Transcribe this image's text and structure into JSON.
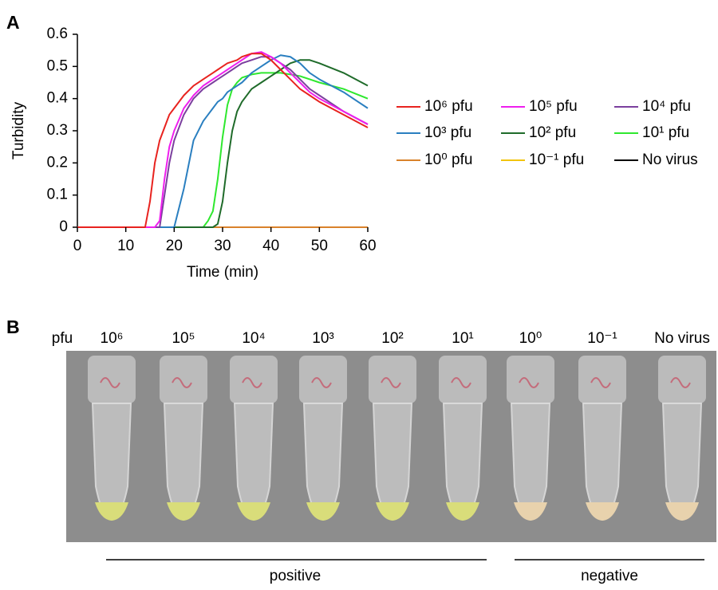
{
  "panel_labels": [
    "A",
    "B"
  ],
  "chart_data": {
    "type": "line",
    "y_label": "Turbidity",
    "x_label": "Time (min)",
    "x": [
      0,
      12,
      14,
      15,
      16,
      17,
      18,
      19,
      20,
      22,
      24,
      26,
      27,
      28,
      29,
      30,
      31,
      32,
      33,
      34,
      36,
      38,
      40,
      42,
      44,
      46,
      48,
      50,
      55,
      60
    ],
    "series": [
      {
        "name": "10⁶ pfu",
        "color": "#e8231f",
        "values": [
          0,
          0,
          0,
          0.08,
          0.2,
          0.27,
          0.31,
          0.35,
          0.37,
          0.41,
          0.44,
          0.46,
          0.47,
          0.48,
          0.49,
          0.5,
          0.51,
          0.515,
          0.52,
          0.53,
          0.54,
          0.54,
          0.52,
          0.49,
          0.46,
          0.43,
          0.41,
          0.39,
          0.35,
          0.31
        ]
      },
      {
        "name": "10⁵ pfu",
        "color": "#ee1eee",
        "values": [
          0,
          0,
          0,
          0,
          0,
          0.02,
          0.15,
          0.25,
          0.3,
          0.37,
          0.41,
          0.44,
          0.45,
          0.46,
          0.47,
          0.48,
          0.49,
          0.5,
          0.51,
          0.52,
          0.54,
          0.545,
          0.53,
          0.51,
          0.48,
          0.45,
          0.42,
          0.4,
          0.36,
          0.32
        ]
      },
      {
        "name": "10⁴ pfu",
        "color": "#7b3f9e",
        "values": [
          0,
          0,
          0,
          0,
          0,
          0,
          0.1,
          0.2,
          0.27,
          0.35,
          0.4,
          0.43,
          0.44,
          0.45,
          0.46,
          0.47,
          0.48,
          0.49,
          0.5,
          0.51,
          0.52,
          0.53,
          0.53,
          0.51,
          0.49,
          0.46,
          0.43,
          0.41,
          0.36,
          0.32
        ]
      },
      {
        "name": "10³ pfu",
        "color": "#2a7fc0",
        "values": [
          0,
          0,
          0,
          0,
          0,
          0,
          0,
          0,
          0,
          0.12,
          0.27,
          0.33,
          0.35,
          0.37,
          0.39,
          0.4,
          0.42,
          0.43,
          0.44,
          0.45,
          0.48,
          0.5,
          0.52,
          0.535,
          0.53,
          0.51,
          0.48,
          0.46,
          0.42,
          0.37
        ]
      },
      {
        "name": "10² pfu",
        "color": "#1f6b2a",
        "values": [
          0,
          0,
          0,
          0,
          0,
          0,
          0,
          0,
          0,
          0,
          0,
          0,
          0,
          0,
          0.01,
          0.08,
          0.2,
          0.3,
          0.36,
          0.39,
          0.43,
          0.45,
          0.47,
          0.49,
          0.51,
          0.52,
          0.52,
          0.51,
          0.48,
          0.44
        ]
      },
      {
        "name": "10¹ pfu",
        "color": "#2ee82e",
        "values": [
          0,
          0,
          0,
          0,
          0,
          0,
          0,
          0,
          0,
          0,
          0,
          0,
          0.02,
          0.05,
          0.15,
          0.28,
          0.38,
          0.43,
          0.45,
          0.465,
          0.475,
          0.48,
          0.48,
          0.48,
          0.475,
          0.47,
          0.46,
          0.45,
          0.43,
          0.4
        ]
      },
      {
        "name": "10⁰ pfu",
        "color": "#d9822b",
        "values": [
          0,
          0,
          0,
          0,
          0,
          0,
          0,
          0,
          0,
          0,
          0,
          0,
          0,
          0,
          0,
          0,
          0,
          0,
          0,
          0,
          0,
          0,
          0,
          0,
          0,
          0,
          0,
          0,
          0,
          0
        ]
      },
      {
        "name": "10⁻¹ pfu",
        "color": "#f2c40e",
        "values": [
          0,
          0,
          0,
          0,
          0,
          0,
          0,
          0,
          0,
          0,
          0,
          0,
          0,
          0,
          0,
          0,
          0,
          0,
          0,
          0,
          0,
          0,
          0,
          0,
          0,
          0,
          0,
          0,
          0,
          0
        ]
      },
      {
        "name": "No virus",
        "color": "#000000",
        "values": [
          0,
          0,
          0,
          0,
          0,
          0,
          0,
          0,
          0,
          0,
          0,
          0,
          0,
          0,
          0,
          0,
          0,
          0,
          0,
          0,
          0,
          0,
          0,
          0,
          0,
          0,
          0,
          0,
          0,
          0
        ]
      }
    ],
    "xlim": [
      0,
      60
    ],
    "xticks": [
      0,
      10,
      20,
      30,
      40,
      50,
      60
    ],
    "ylim": [
      0,
      0.6
    ],
    "yticks": [
      0,
      0.1,
      0.2,
      0.3,
      0.4,
      0.5,
      0.6
    ]
  },
  "photo": {
    "row_label": "pfu",
    "tube_labels": [
      "10⁶",
      "10⁵",
      "10⁴",
      "10³",
      "10²",
      "10¹",
      "10⁰",
      "10⁻¹",
      "No virus"
    ],
    "groups": [
      "positive",
      "negative"
    ]
  }
}
